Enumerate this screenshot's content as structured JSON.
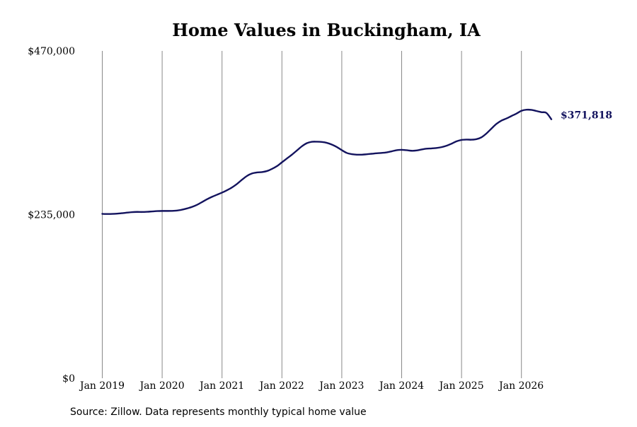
{
  "chart_data": {
    "type": "line",
    "title": "Home Values in Buckingham, IA",
    "xlabel": "",
    "ylabel": "",
    "ylim": [
      0,
      470000
    ],
    "yticks": [
      0,
      235000,
      470000
    ],
    "ytick_labels": [
      "$0",
      "$235,000",
      "$470,000"
    ],
    "x_start": "2019-01",
    "x_end": "2026-07",
    "xticks": [
      "2019-01",
      "2020-01",
      "2021-01",
      "2022-01",
      "2023-01",
      "2024-01",
      "2025-01",
      "2026-01"
    ],
    "xtick_labels": [
      "Jan 2019",
      "Jan 2020",
      "Jan 2021",
      "Jan 2022",
      "Jan 2023",
      "Jan 2024",
      "Jan 2025",
      "Jan 2026"
    ],
    "grid": "vertical",
    "line_color": "#13135e",
    "grid_color": "#888888",
    "end_label": "$371,818",
    "series": [
      {
        "x": [
          "2019-01",
          "2019-02",
          "2019-03",
          "2019-04",
          "2019-05",
          "2019-06",
          "2019-07",
          "2019-08",
          "2019-09",
          "2019-10",
          "2019-11",
          "2019-12",
          "2020-01",
          "2020-02",
          "2020-03",
          "2020-04",
          "2020-05",
          "2020-06",
          "2020-07",
          "2020-08",
          "2020-09",
          "2020-10",
          "2020-11",
          "2020-12",
          "2021-01",
          "2021-02",
          "2021-03",
          "2021-04",
          "2021-05",
          "2021-06",
          "2021-07",
          "2021-08",
          "2021-09",
          "2021-10",
          "2021-11",
          "2021-12",
          "2022-01",
          "2022-02",
          "2022-03",
          "2022-04",
          "2022-05",
          "2022-06",
          "2022-07",
          "2022-08",
          "2022-09",
          "2022-10",
          "2022-11",
          "2022-12",
          "2023-01",
          "2023-02",
          "2023-03",
          "2023-04",
          "2023-05",
          "2023-06",
          "2023-07",
          "2023-08",
          "2023-09",
          "2023-10",
          "2023-11",
          "2023-12",
          "2024-01",
          "2024-02",
          "2024-03",
          "2024-04",
          "2024-05",
          "2024-06",
          "2024-07",
          "2024-08",
          "2024-09",
          "2024-10",
          "2024-11",
          "2024-12",
          "2025-01",
          "2025-02",
          "2025-03",
          "2025-04",
          "2025-05",
          "2025-06",
          "2025-07",
          "2025-08",
          "2025-09",
          "2025-10",
          "2025-11",
          "2025-12",
          "2026-01",
          "2026-02",
          "2026-03",
          "2026-04",
          "2026-05",
          "2026-06",
          "2026-07"
        ],
        "values": [
          236000,
          235800,
          235900,
          236300,
          237000,
          237800,
          238500,
          238800,
          238700,
          239000,
          239500,
          240000,
          240200,
          240200,
          240300,
          240800,
          242000,
          243800,
          246000,
          249000,
          253000,
          257000,
          260500,
          263500,
          266500,
          270000,
          274000,
          279000,
          285000,
          290500,
          294000,
          295500,
          296000,
          297500,
          300500,
          304500,
          310000,
          315500,
          321000,
          327000,
          333000,
          337500,
          339500,
          339600,
          339200,
          338000,
          335500,
          332000,
          327500,
          323500,
          321700,
          321000,
          321000,
          321600,
          322300,
          323000,
          323500,
          324300,
          325800,
          327500,
          328000,
          327400,
          326600,
          327000,
          328500,
          329600,
          330000,
          330600,
          331800,
          333800,
          336800,
          340200,
          342200,
          342700,
          342500,
          343300,
          346000,
          351500,
          358500,
          365200,
          370000,
          373000,
          376500,
          380000,
          384000,
          385500,
          385300,
          383700,
          382000,
          381000,
          371818
        ]
      }
    ]
  },
  "source": {
    "text": "Source: Zillow. Data represents monthly typical home value"
  }
}
